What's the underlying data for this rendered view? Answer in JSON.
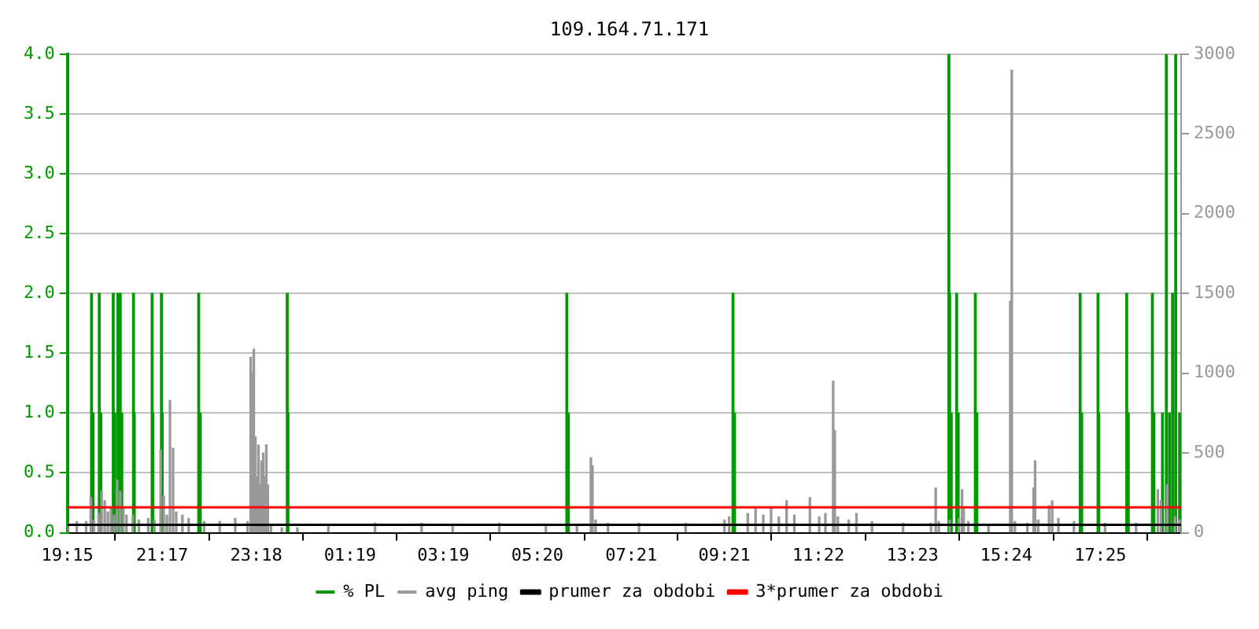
{
  "chart_data": {
    "type": "bar",
    "title": "109.164.71.171",
    "xlim": [
      "2000-01-01T19:15",
      "2000-01-02T19:09"
    ],
    "xticks": [
      {
        "value": "2000-01-01T19:15",
        "label": "19:15"
      },
      {
        "value": "2000-01-01T21:17",
        "label": "21:17"
      },
      {
        "value": "2000-01-01T23:18",
        "label": "23:18"
      },
      {
        "value": "2000-01-02T01:19",
        "label": "01:19"
      },
      {
        "value": "2000-01-02T03:19",
        "label": "03:19"
      },
      {
        "value": "2000-01-02T05:20",
        "label": "05:20"
      },
      {
        "value": "2000-01-02T07:21",
        "label": "07:21"
      },
      {
        "value": "2000-01-02T09:21",
        "label": "09:21"
      },
      {
        "value": "2000-01-02T11:22",
        "label": "11:22"
      },
      {
        "value": "2000-01-02T13:23",
        "label": "13:23"
      },
      {
        "value": "2000-01-02T15:24",
        "label": "15:24"
      },
      {
        "value": "2000-01-02T17:25",
        "label": "17:25"
      }
    ],
    "ylim": [
      0,
      4
    ],
    "yticks": [
      {
        "value": 0,
        "label": "0.0"
      },
      {
        "value": 0.5,
        "label": "0.5"
      },
      {
        "value": 1,
        "label": "1.0"
      },
      {
        "value": 1.5,
        "label": "1.5"
      },
      {
        "value": 2,
        "label": "2.0"
      },
      {
        "value": 2.5,
        "label": "2.5"
      },
      {
        "value": 3,
        "label": "3.0"
      },
      {
        "value": 3.5,
        "label": "3.5"
      },
      {
        "value": 4,
        "label": "4.0"
      }
    ],
    "y2lim": [
      0,
      3000
    ],
    "y2ticks": [
      0,
      500,
      1000,
      1500,
      2000,
      2500,
      3000
    ],
    "grid": "y",
    "legend": "bottom",
    "series": [
      {
        "name": "% PL",
        "color": "#009900",
        "x": [
          "2000-01-01T19:46",
          "2000-01-01T19:48",
          "2000-01-01T19:56",
          "2000-01-01T19:58",
          "2000-01-01T20:14",
          "2000-01-01T20:16",
          "2000-01-01T20:20",
          "2000-01-01T20:23",
          "2000-01-01T20:25",
          "2000-01-01T20:40",
          "2000-01-01T20:41",
          "2000-01-01T21:04",
          "2000-01-01T21:05",
          "2000-01-01T21:16",
          "2000-01-01T21:17",
          "2000-01-01T22:04",
          "2000-01-01T22:06",
          "2000-01-01T23:58",
          "2000-01-01T23:59",
          "2000-01-02T05:58",
          "2000-01-02T06:00",
          "2000-01-02T09:32",
          "2000-01-02T09:34",
          "2000-01-02T14:10",
          "2000-01-02T14:11",
          "2000-01-02T14:13",
          "2000-01-02T14:20",
          "2000-01-02T14:22",
          "2000-01-02T14:44",
          "2000-01-02T14:46",
          "2000-01-02T16:59",
          "2000-01-02T17:01",
          "2000-01-02T17:22",
          "2000-01-02T17:23",
          "2000-01-02T17:59",
          "2000-01-02T18:01",
          "2000-01-02T18:32",
          "2000-01-02T18:34",
          "2000-01-02T18:45",
          "2000-01-02T18:50",
          "2000-01-02T18:54",
          "2000-01-02T18:58",
          "2000-01-02T19:02",
          "2000-01-02T19:07"
        ],
        "values": [
          2,
          1,
          2,
          1,
          2,
          1,
          2,
          2,
          1,
          2,
          1,
          2,
          1,
          2,
          1,
          2,
          1,
          2,
          1,
          2,
          1,
          2,
          1,
          4,
          2,
          1,
          2,
          1,
          2,
          1,
          2,
          1,
          2,
          1,
          2,
          1,
          2,
          1,
          1,
          4,
          1,
          2,
          4,
          1
        ]
      },
      {
        "name": "avg ping",
        "axis": "y2",
        "color": "#999999",
        "x": [
          "2000-01-01T19:15",
          "2000-01-01T19:27",
          "2000-01-01T19:39",
          "2000-01-01T19:45",
          "2000-01-01T19:49",
          "2000-01-01T19:55",
          "2000-01-01T19:59",
          "2000-01-01T20:03",
          "2000-01-01T20:07",
          "2000-01-01T20:11",
          "2000-01-01T20:15",
          "2000-01-01T20:19",
          "2000-01-01T20:23",
          "2000-01-01T20:27",
          "2000-01-01T20:31",
          "2000-01-01T20:39",
          "2000-01-01T20:47",
          "2000-01-01T20:59",
          "2000-01-01T21:07",
          "2000-01-01T21:15",
          "2000-01-01T21:19",
          "2000-01-01T21:23",
          "2000-01-01T21:27",
          "2000-01-01T21:31",
          "2000-01-01T21:35",
          "2000-01-01T21:43",
          "2000-01-01T21:51",
          "2000-01-01T22:11",
          "2000-01-01T22:31",
          "2000-01-01T22:51",
          "2000-01-01T23:07",
          "2000-01-01T23:11",
          "2000-01-01T23:13",
          "2000-01-01T23:15",
          "2000-01-01T23:17",
          "2000-01-01T23:19",
          "2000-01-01T23:21",
          "2000-01-01T23:23",
          "2000-01-01T23:25",
          "2000-01-01T23:27",
          "2000-01-01T23:29",
          "2000-01-01T23:31",
          "2000-01-01T23:33",
          "2000-01-01T23:37",
          "2000-01-01T23:51",
          "2000-01-02T00:11",
          "2000-01-02T00:51",
          "2000-01-02T01:51",
          "2000-01-02T02:51",
          "2000-01-02T03:31",
          "2000-01-02T04:31",
          "2000-01-02T05:31",
          "2000-01-02T06:11",
          "2000-01-02T06:29",
          "2000-01-02T06:31",
          "2000-01-02T06:35",
          "2000-01-02T06:51",
          "2000-01-02T07:31",
          "2000-01-02T08:31",
          "2000-01-02T09:21",
          "2000-01-02T09:27",
          "2000-01-02T09:51",
          "2000-01-02T10:01",
          "2000-01-02T10:11",
          "2000-01-02T10:21",
          "2000-01-02T10:31",
          "2000-01-02T10:41",
          "2000-01-02T10:51",
          "2000-01-02T11:11",
          "2000-01-02T11:23",
          "2000-01-02T11:31",
          "2000-01-02T11:41",
          "2000-01-02T11:43",
          "2000-01-02T11:47",
          "2000-01-02T12:01",
          "2000-01-02T12:11",
          "2000-01-02T12:31",
          "2000-01-02T13:11",
          "2000-01-02T13:47",
          "2000-01-02T13:53",
          "2000-01-02T13:57",
          "2000-01-02T14:11",
          "2000-01-02T14:23",
          "2000-01-02T14:27",
          "2000-01-02T14:29",
          "2000-01-02T14:35",
          "2000-01-02T15:01",
          "2000-01-02T15:29",
          "2000-01-02T15:31",
          "2000-01-02T15:35",
          "2000-01-02T15:51",
          "2000-01-02T15:59",
          "2000-01-02T16:01",
          "2000-01-02T16:05",
          "2000-01-02T16:19",
          "2000-01-02T16:23",
          "2000-01-02T16:31",
          "2000-01-02T16:51",
          "2000-01-02T17:31",
          "2000-01-02T18:11",
          "2000-01-02T18:39",
          "2000-01-02T18:43",
          "2000-01-02T18:51",
          "2000-01-02T19:01",
          "2000-01-02T19:07"
        ],
        "values": [
          60,
          70,
          70,
          220,
          80,
          120,
          260,
          200,
          130,
          160,
          110,
          330,
          260,
          150,
          110,
          110,
          80,
          90,
          80,
          520,
          230,
          110,
          830,
          530,
          130,
          110,
          90,
          70,
          70,
          90,
          70,
          1100,
          1000,
          1150,
          600,
          350,
          550,
          300,
          450,
          500,
          350,
          550,
          300,
          40,
          30,
          30,
          50,
          60,
          60,
          50,
          60,
          50,
          50,
          470,
          420,
          80,
          60,
          60,
          60,
          80,
          100,
          120,
          150,
          110,
          160,
          100,
          200,
          110,
          220,
          100,
          120,
          950,
          640,
          100,
          80,
          120,
          70,
          60,
          60,
          280,
          70,
          80,
          90,
          270,
          150,
          70,
          50,
          1450,
          2900,
          70,
          60,
          280,
          450,
          80,
          170,
          200,
          90,
          70,
          60,
          60,
          270,
          200,
          300,
          100,
          80
        ]
      },
      {
        "name": "prumer za obdobi",
        "type": "line",
        "axis": "y2",
        "color": "#000000",
        "x": [
          "2000-01-01T19:15",
          "2000-01-02T19:09"
        ],
        "values": [
          50,
          50
        ]
      },
      {
        "name": "3*prumer za obdobi",
        "type": "line",
        "axis": "y2",
        "color": "#ff0000",
        "x": [
          "2000-01-01T19:15",
          "2000-01-02T19:09"
        ],
        "values": [
          160,
          160
        ]
      }
    ]
  }
}
